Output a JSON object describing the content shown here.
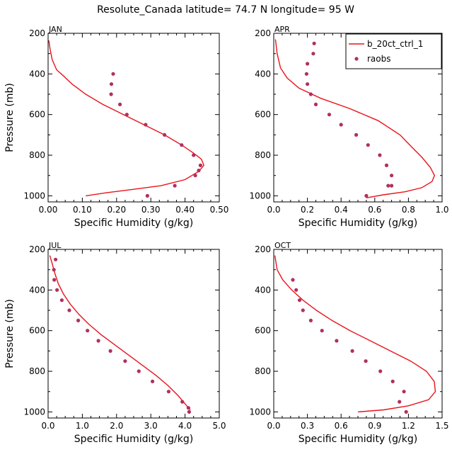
{
  "title": "Resolute_Canada  latitude= 74.7 N longitude= 95 W",
  "legend": {
    "model": "b_20ct_ctrl_1",
    "obs": "raobs"
  },
  "colors": {
    "model": "#e8141c",
    "obs": "#b0305e"
  },
  "chart_data": [
    {
      "type": "line",
      "panel_label": "JAN",
      "xlabel": "Specific Humidity (g/kg)",
      "ylabel": "Pressure (mb)",
      "xlim": [
        0,
        0.5
      ],
      "xticks": [
        "0.00",
        "0.10",
        "0.20",
        "0.30",
        "0.40",
        "0.50"
      ],
      "ylim": [
        200,
        1030
      ],
      "yticks": [
        "200",
        "400",
        "600",
        "800",
        "1000"
      ],
      "y_inverted": true,
      "series": [
        {
          "name": "b_20ct_ctrl_1",
          "style": "line",
          "x": [
            0.002,
            0.006,
            0.012,
            0.025,
            0.045,
            0.07,
            0.11,
            0.16,
            0.22,
            0.28,
            0.34,
            0.39,
            0.425,
            0.448,
            0.455,
            0.44,
            0.4,
            0.33,
            0.24,
            0.17,
            0.11
          ],
          "y": [
            235,
            280,
            330,
            380,
            410,
            450,
            500,
            550,
            600,
            650,
            700,
            750,
            790,
            820,
            850,
            880,
            920,
            950,
            970,
            985,
            1000
          ]
        },
        {
          "name": "raobs",
          "style": "points",
          "x": [
            0.19,
            0.185,
            0.184,
            0.21,
            0.23,
            0.285,
            0.34,
            0.39,
            0.425,
            0.445,
            0.44,
            0.43,
            0.37,
            0.29
          ],
          "y": [
            400,
            450,
            500,
            550,
            600,
            650,
            700,
            750,
            800,
            850,
            875,
            900,
            950,
            1000
          ]
        }
      ]
    },
    {
      "type": "line",
      "panel_label": "APR",
      "xlabel": "Specific Humidity (g/kg)",
      "ylabel": "",
      "xlim": [
        0,
        1.0
      ],
      "xticks": [
        "0.0",
        "0.2",
        "0.4",
        "0.6",
        "0.8",
        "1.0"
      ],
      "ylim": [
        200,
        1030
      ],
      "yticks": [
        "200",
        "400",
        "600",
        "800",
        "1000"
      ],
      "y_inverted": true,
      "series": [
        {
          "name": "b_20ct_ctrl_1",
          "style": "line",
          "x": [
            0.01,
            0.02,
            0.04,
            0.08,
            0.15,
            0.28,
            0.45,
            0.62,
            0.75,
            0.82,
            0.88,
            0.93,
            0.955,
            0.94,
            0.88,
            0.78,
            0.65,
            0.55
          ],
          "y": [
            230,
            300,
            370,
            420,
            470,
            520,
            570,
            630,
            700,
            760,
            810,
            860,
            900,
            930,
            960,
            980,
            995,
            1010
          ]
        },
        {
          "name": "raobs",
          "style": "points",
          "x": [
            0.24,
            0.235,
            0.2,
            0.195,
            0.2,
            0.22,
            0.25,
            0.33,
            0.4,
            0.49,
            0.56,
            0.63,
            0.67,
            0.7,
            0.7,
            0.68,
            0.55
          ],
          "y": [
            250,
            300,
            350,
            400,
            450,
            500,
            550,
            600,
            650,
            700,
            750,
            800,
            850,
            900,
            950,
            950,
            1000
          ]
        }
      ]
    },
    {
      "type": "line",
      "panel_label": "JUL",
      "xlabel": "Specific Humidity (g/kg)",
      "ylabel": "Pressure (mb)",
      "xlim": [
        0,
        5.0
      ],
      "xticks": [
        "0.0",
        "1.0",
        "2.0",
        "3.0",
        "4.0",
        "5.0"
      ],
      "ylim": [
        200,
        1030
      ],
      "yticks": [
        "200",
        "400",
        "600",
        "800",
        "1000"
      ],
      "y_inverted": true,
      "series": [
        {
          "name": "b_20ct_ctrl_1",
          "style": "line",
          "x": [
            0.05,
            0.12,
            0.2,
            0.3,
            0.45,
            0.65,
            0.9,
            1.2,
            1.55,
            1.95,
            2.35,
            2.75,
            3.15,
            3.5,
            3.8,
            4.05,
            4.15
          ],
          "y": [
            230,
            270,
            320,
            370,
            420,
            470,
            520,
            570,
            620,
            670,
            720,
            770,
            820,
            870,
            920,
            970,
            990
          ]
        },
        {
          "name": "raobs",
          "style": "points",
          "x": [
            0.22,
            0.17,
            0.18,
            0.26,
            0.4,
            0.62,
            0.88,
            1.15,
            1.47,
            1.82,
            2.25,
            2.65,
            3.05,
            3.52,
            3.92,
            4.1,
            4.12
          ],
          "y": [
            250,
            300,
            350,
            400,
            450,
            500,
            550,
            600,
            650,
            700,
            750,
            800,
            850,
            900,
            950,
            980,
            1000
          ]
        }
      ]
    },
    {
      "type": "line",
      "panel_label": "OCT",
      "xlabel": "Specific Humidity (g/kg)",
      "ylabel": "",
      "xlim": [
        0,
        1.5
      ],
      "xticks": [
        "0.0",
        "0.3",
        "0.6",
        "0.9",
        "1.2",
        "1.5"
      ],
      "ylim": [
        200,
        1030
      ],
      "yticks": [
        "200",
        "400",
        "600",
        "800",
        "1000"
      ],
      "y_inverted": true,
      "series": [
        {
          "name": "b_20ct_ctrl_1",
          "style": "line",
          "x": [
            0.01,
            0.03,
            0.08,
            0.16,
            0.26,
            0.38,
            0.52,
            0.68,
            0.86,
            1.04,
            1.22,
            1.36,
            1.43,
            1.44,
            1.38,
            1.2,
            0.98,
            0.75
          ],
          "y": [
            230,
            300,
            350,
            400,
            450,
            500,
            550,
            600,
            650,
            700,
            750,
            800,
            850,
            900,
            940,
            970,
            990,
            1000
          ]
        },
        {
          "name": "raobs",
          "style": "points",
          "x": [
            0.17,
            0.2,
            0.23,
            0.26,
            0.33,
            0.43,
            0.56,
            0.7,
            0.82,
            0.95,
            1.06,
            1.16,
            1.12,
            1.18
          ],
          "y": [
            350,
            400,
            450,
            500,
            550,
            600,
            650,
            700,
            750,
            800,
            850,
            900,
            950,
            1000
          ]
        }
      ]
    }
  ]
}
